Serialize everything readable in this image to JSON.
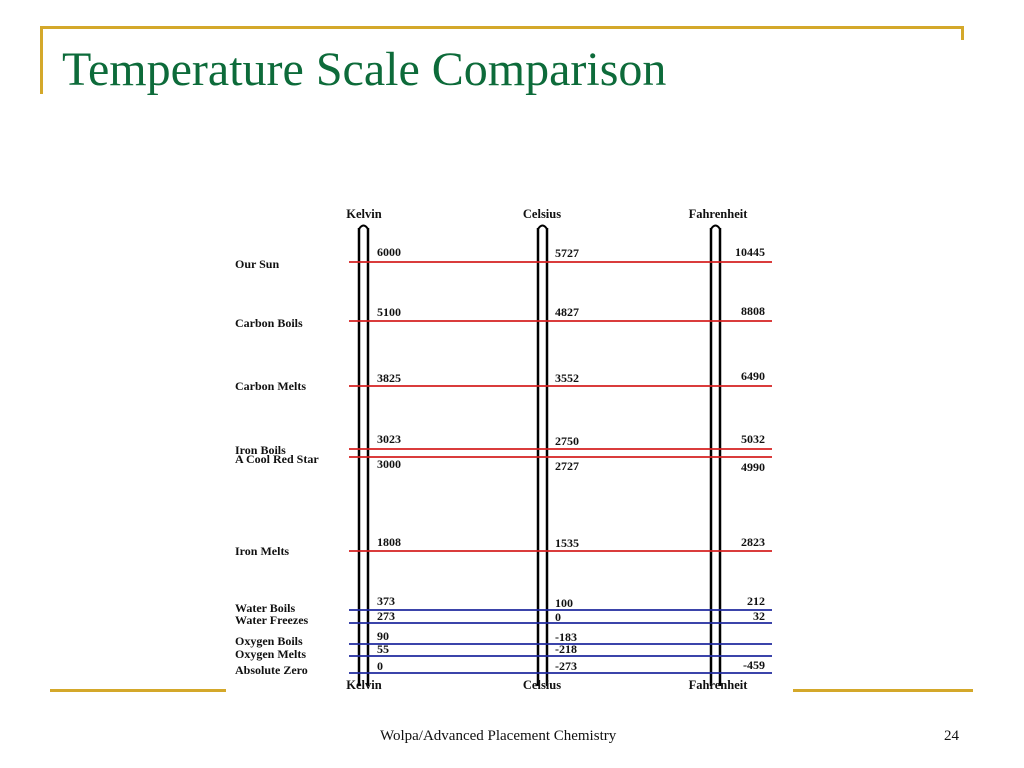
{
  "slide": {
    "title": "Temperature Scale Comparison",
    "footer": "Wolpa/Advanced Placement Chemistry",
    "page_number": "24",
    "accent_color": "#d4a82a",
    "title_color": "#0d6b3a"
  },
  "diagram": {
    "scales": [
      "Kelvin",
      "Celsius",
      "Fahrenheit"
    ],
    "colors": {
      "hot": "#d42020",
      "cold": "#1f2a9e"
    },
    "points": [
      {
        "label": "Our Sun",
        "kelvin": "6000",
        "celsius": "5727",
        "fahrenheit": "10445",
        "group": "hot"
      },
      {
        "label": "Carbon Boils",
        "kelvin": "5100",
        "celsius": "4827",
        "fahrenheit": "8808",
        "group": "hot"
      },
      {
        "label": "Carbon Melts",
        "kelvin": "3825",
        "celsius": "3552",
        "fahrenheit": "6490",
        "group": "hot"
      },
      {
        "label": "Iron Boils",
        "kelvin": "3023",
        "celsius": "2750",
        "fahrenheit": "5032",
        "group": "hot"
      },
      {
        "label": "A Cool Red Star",
        "kelvin": "3000",
        "celsius": "2727",
        "fahrenheit": "4990",
        "group": "hot"
      },
      {
        "label": "Iron Melts",
        "kelvin": "1808",
        "celsius": "1535",
        "fahrenheit": "2823",
        "group": "hot"
      },
      {
        "label": "Water Boils",
        "kelvin": "373",
        "celsius": "100",
        "fahrenheit": "212",
        "group": "cold"
      },
      {
        "label": "Water Freezes",
        "kelvin": "273",
        "celsius": "0",
        "fahrenheit": "32",
        "group": "cold"
      },
      {
        "label": "Oxygen Boils",
        "kelvin": "90",
        "celsius": "-183",
        "fahrenheit": "",
        "group": "cold"
      },
      {
        "label": "Oxygen Melts",
        "kelvin": "55",
        "celsius": "-218",
        "fahrenheit": "",
        "group": "cold"
      },
      {
        "label": "Absolute Zero",
        "kelvin": "0",
        "celsius": "-273",
        "fahrenheit": "-459",
        "group": "cold"
      }
    ]
  }
}
